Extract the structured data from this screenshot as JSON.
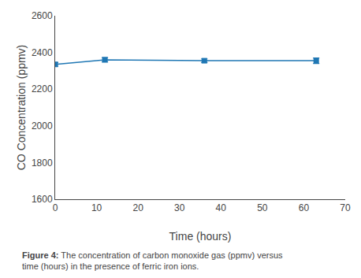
{
  "chart_data": {
    "type": "line",
    "x": [
      0,
      12,
      36,
      63
    ],
    "series": [
      {
        "values": [
          2335,
          2360,
          2355,
          2355
        ],
        "error": [
          10,
          12,
          10,
          15
        ],
        "marker": "square",
        "line_style": "solid"
      }
    ],
    "xlabel": "Time (hours)",
    "ylabel": "CO Concentration (ppmv)",
    "xlim": [
      0,
      70
    ],
    "ylim": [
      1600,
      2600
    ],
    "xticks": [
      0,
      10,
      20,
      30,
      40,
      50,
      60,
      70
    ],
    "yticks": [
      1600,
      1800,
      2000,
      2200,
      2400,
      2600
    ],
    "caption": {
      "label": "Figure 4:",
      "text": "The concentration of carbon monoxide gas (ppmv) versus\ntime (hours) in the presence of ferric iron ions."
    },
    "grid": false
  }
}
